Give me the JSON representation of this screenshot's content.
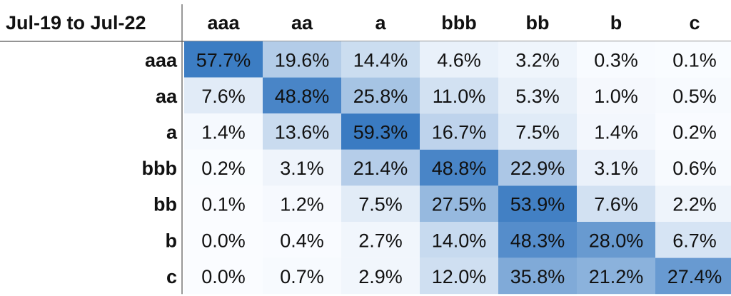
{
  "chart_data": {
    "type": "heatmap",
    "title": "Jul-19 to Jul-22",
    "x_categories": [
      "aaa",
      "aa",
      "a",
      "bbb",
      "bb",
      "b",
      "c"
    ],
    "y_categories": [
      "aaa",
      "aa",
      "a",
      "bbb",
      "bb",
      "b",
      "c"
    ],
    "color": "#3a7bc2",
    "values": [
      [
        57.7,
        19.6,
        14.4,
        4.6,
        3.2,
        0.3,
        0.1
      ],
      [
        7.6,
        48.8,
        25.8,
        11.0,
        5.3,
        1.0,
        0.5
      ],
      [
        1.4,
        13.6,
        59.3,
        16.7,
        7.5,
        1.4,
        0.2
      ],
      [
        0.2,
        3.1,
        21.4,
        48.8,
        22.9,
        3.1,
        0.6
      ],
      [
        0.1,
        1.2,
        7.5,
        27.5,
        53.9,
        7.6,
        2.2
      ],
      [
        0.0,
        0.4,
        2.7,
        14.0,
        48.3,
        28.0,
        6.7
      ],
      [
        0.0,
        0.7,
        2.9,
        12.0,
        35.8,
        21.2,
        27.4
      ]
    ],
    "value_labels": [
      [
        "57.7%",
        "19.6%",
        "14.4%",
        "4.6%",
        "3.2%",
        "0.3%",
        "0.1%"
      ],
      [
        "7.6%",
        "48.8%",
        "25.8%",
        "11.0%",
        "5.3%",
        "1.0%",
        "0.5%"
      ],
      [
        "1.4%",
        "13.6%",
        "59.3%",
        "16.7%",
        "7.5%",
        "1.4%",
        "0.2%"
      ],
      [
        "0.2%",
        "3.1%",
        "21.4%",
        "48.8%",
        "22.9%",
        "3.1%",
        "0.6%"
      ],
      [
        "0.1%",
        "1.2%",
        "7.5%",
        "27.5%",
        "53.9%",
        "7.6%",
        "2.2%"
      ],
      [
        "0.0%",
        "0.4%",
        "2.7%",
        "14.0%",
        "48.3%",
        "28.0%",
        "6.7%"
      ],
      [
        "0.0%",
        "0.7%",
        "2.9%",
        "12.0%",
        "35.8%",
        "21.2%",
        "27.4%"
      ]
    ]
  }
}
